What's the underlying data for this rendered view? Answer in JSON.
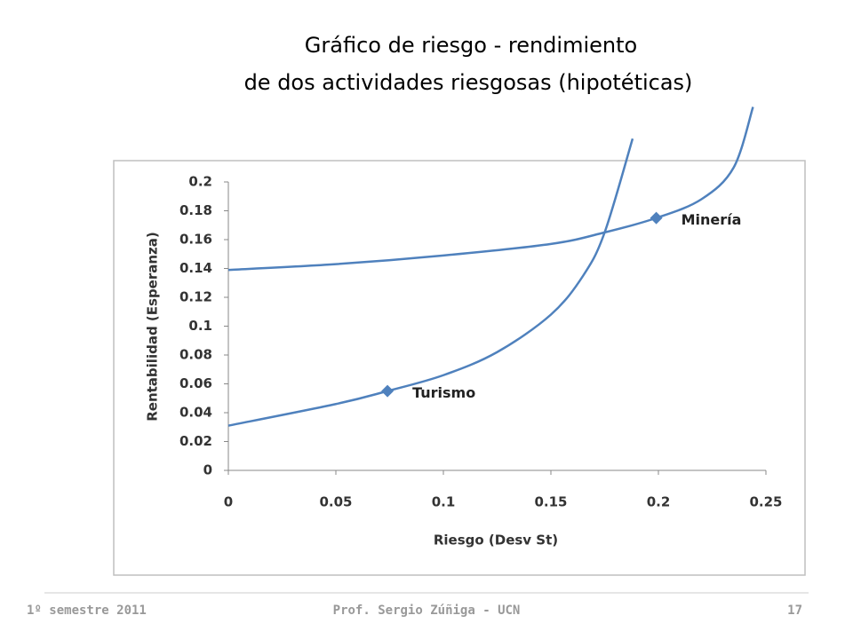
{
  "slide": {
    "title": [
      "Gráfico de riesgo - rendimiento",
      "de dos actividades riesgosas (hipotéticas)"
    ],
    "footer": {
      "left": "1º semestre 2011",
      "center": "Prof. Sergio Zúñiga - UCN",
      "right": "17"
    }
  },
  "chart_data": {
    "type": "line",
    "xlabel": "Riesgo (Desv St)",
    "ylabel": "Rentabilidad (Esperanza)",
    "xlim": [
      0,
      0.25
    ],
    "xticks": [
      0,
      0.05,
      0.1,
      0.15,
      0.2,
      0.25
    ],
    "ylim": [
      0,
      0.2
    ],
    "yticks": [
      0,
      0.02,
      0.04,
      0.06,
      0.08,
      0.1,
      0.12,
      0.14,
      0.16,
      0.18,
      0.2
    ],
    "grid": false,
    "series": [
      {
        "color": "#4f81bd",
        "x": [
          0,
          0.05,
          0.1,
          0.15,
          0.175,
          0.199,
          0.22,
          0.235,
          0.244
        ],
        "values": [
          0.139,
          0.143,
          0.149,
          0.157,
          0.165,
          0.175,
          0.188,
          0.21,
          0.252
        ]
      },
      {
        "color": "#4f81bd",
        "x": [
          0,
          0.05,
          0.074,
          0.1,
          0.125,
          0.15,
          0.165,
          0.175,
          0.188
        ],
        "values": [
          0.031,
          0.046,
          0.055,
          0.066,
          0.082,
          0.108,
          0.135,
          0.165,
          0.23
        ]
      }
    ],
    "points": [
      {
        "label": "Turismo",
        "x": 0.074,
        "y": 0.055,
        "color": "#4f81bd"
      },
      {
        "label": "Minería",
        "x": 0.199,
        "y": 0.175,
        "color": "#4f81bd"
      }
    ]
  }
}
